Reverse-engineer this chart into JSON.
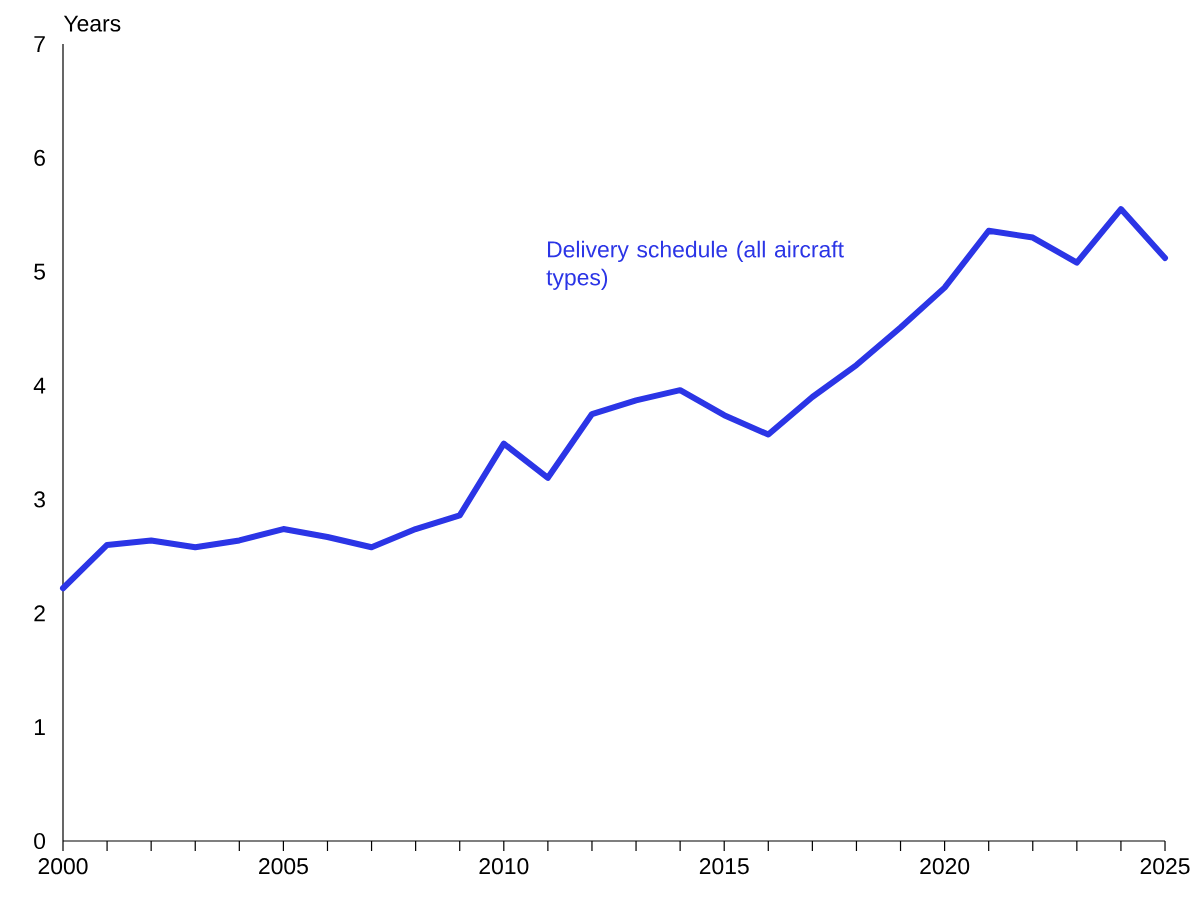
{
  "chart_data": {
    "type": "line",
    "ylabel": "Years",
    "x": [
      2000,
      2001,
      2002,
      2003,
      2004,
      2005,
      2006,
      2007,
      2008,
      2009,
      2010,
      2011,
      2012,
      2013,
      2014,
      2015,
      2016,
      2017,
      2018,
      2019,
      2020,
      2021,
      2022,
      2023,
      2024,
      2025
    ],
    "series": [
      {
        "name": "Delivery schedule (all aircraft types)",
        "color": "#2b35e6",
        "values": [
          2.22,
          2.6,
          2.64,
          2.58,
          2.64,
          2.74,
          2.67,
          2.58,
          2.74,
          2.86,
          3.49,
          3.19,
          3.75,
          3.87,
          3.96,
          3.74,
          3.57,
          3.9,
          4.18,
          4.51,
          4.86,
          5.36,
          5.3,
          5.08,
          5.55,
          5.12
        ]
      }
    ],
    "xlim": [
      2000,
      2025
    ],
    "ylim": [
      0,
      7
    ],
    "xticks": [
      2000,
      {
        "value": 2001,
        "label": null
      },
      {
        "value": 2002,
        "label": null
      },
      {
        "value": 2003,
        "label": null
      },
      {
        "value": 2004,
        "label": null
      },
      2005,
      {
        "value": 2006,
        "label": null
      },
      {
        "value": 2007,
        "label": null
      },
      {
        "value": 2008,
        "label": null
      },
      {
        "value": 2009,
        "label": null
      },
      2010,
      {
        "value": 2011,
        "label": null
      },
      {
        "value": 2012,
        "label": null
      },
      {
        "value": 2013,
        "label": null
      },
      {
        "value": 2014,
        "label": null
      },
      2015,
      {
        "value": 2016,
        "label": null
      },
      {
        "value": 2017,
        "label": null
      },
      {
        "value": 2018,
        "label": null
      },
      {
        "value": 2019,
        "label": null
      },
      2020,
      {
        "value": 2021,
        "label": null
      },
      {
        "value": 2022,
        "label": null
      },
      {
        "value": 2023,
        "label": null
      },
      {
        "value": 2024,
        "label": null
      },
      2025
    ],
    "yticks": [
      0,
      1,
      2,
      3,
      4,
      5,
      6,
      7
    ],
    "grid": false,
    "legend": false,
    "marker": "none",
    "line_style": "solid"
  }
}
